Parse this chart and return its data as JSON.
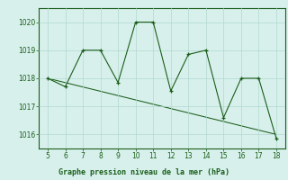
{
  "x": [
    5,
    6,
    7,
    8,
    9,
    10,
    11,
    12,
    13,
    14,
    15,
    16,
    17,
    18
  ],
  "y": [
    1018.0,
    1017.7,
    1019.0,
    1019.0,
    1017.85,
    1020.0,
    1020.0,
    1017.55,
    1018.85,
    1019.0,
    1016.6,
    1018.0,
    1018.0,
    1015.85
  ],
  "trend_x": [
    5,
    18
  ],
  "trend_y": [
    1018.0,
    1016.0
  ],
  "line_color": "#1a5e1a",
  "bg_color": "#d8f0ec",
  "grid_color": "#b0d8d0",
  "xlabel": "Graphe pression niveau de la mer (hPa)",
  "ylim": [
    1015.5,
    1020.5
  ],
  "xlim": [
    4.5,
    18.5
  ],
  "yticks": [
    1016,
    1017,
    1018,
    1019,
    1020
  ],
  "xticks": [
    5,
    6,
    7,
    8,
    9,
    10,
    11,
    12,
    13,
    14,
    15,
    16,
    17,
    18
  ]
}
